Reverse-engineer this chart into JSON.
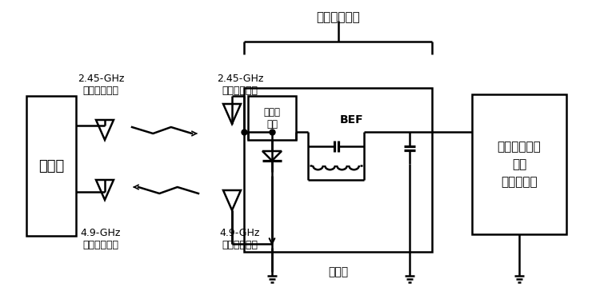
{
  "title": "受電レクテナ",
  "transmitter_label": "送電機",
  "rectenna_label": "整流器",
  "sensor_label": "バッテリレス\n無線\n漏水センサ",
  "harmonics_label": "高調波\n発生",
  "bef_label": "BEF",
  "ant_tx_245_label": "2.45-GHz\n送電アンテナ",
  "ant_rx_245_label": "2.45-GHz\n受電アンテナ",
  "ant_rx_49_label": "4.9-GHz\n受信アンテナ",
  "ant_tx_49_label": "4.9-GHz\n送信アンテナ",
  "bg_color": "#ffffff",
  "box_color": "#000000",
  "lw": 1.8
}
